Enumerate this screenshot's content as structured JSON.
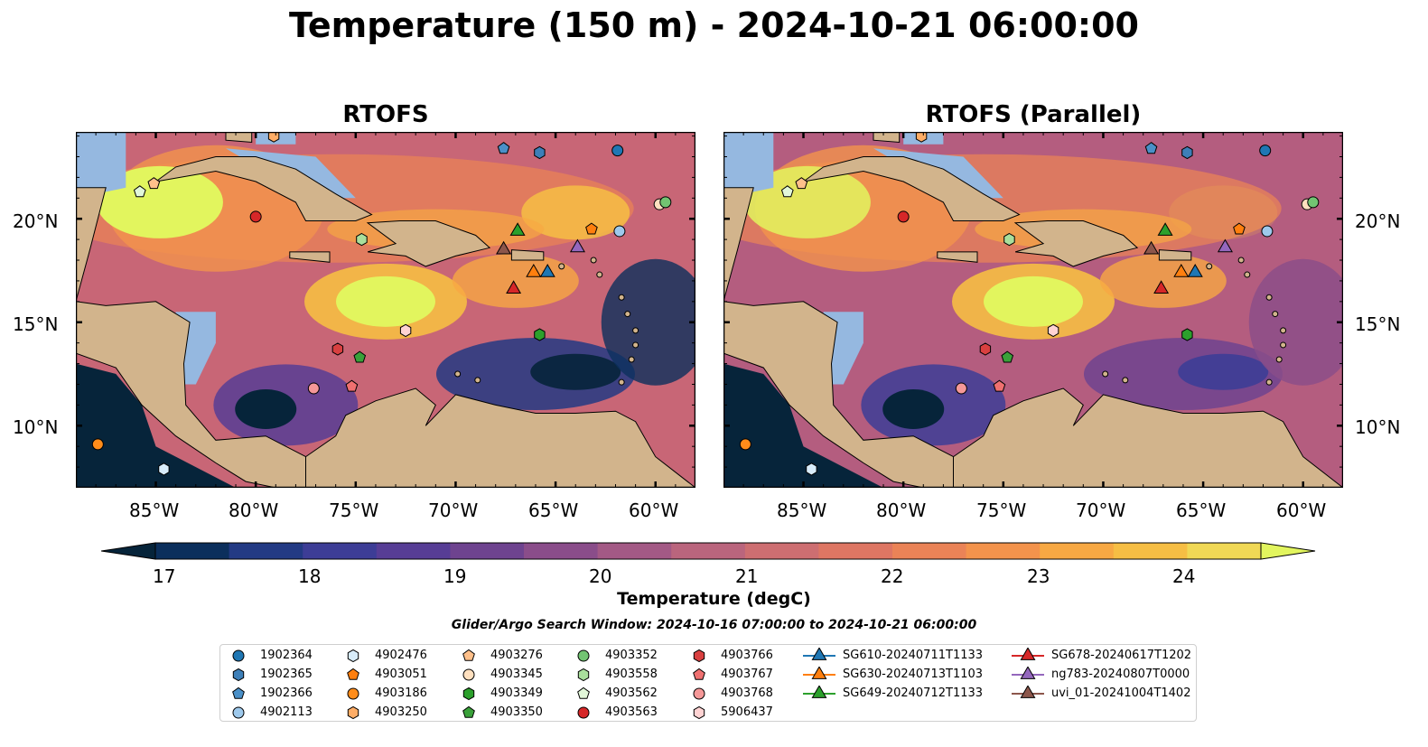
{
  "title": "Temperature (150 m) - 2024-10-21 06:00:00",
  "panels": [
    {
      "title": "RTOFS"
    },
    {
      "title": "RTOFS (Parallel)"
    }
  ],
  "colorbar": {
    "label": "Temperature (degC)",
    "ticks": [
      "17",
      "18",
      "19",
      "20",
      "21",
      "22",
      "23",
      "24"
    ],
    "colors": [
      "#06243a",
      "#0b2f5c",
      "#233a84",
      "#3d3d96",
      "#573d95",
      "#6e438f",
      "#8a4d8a",
      "#a35985",
      "#ba657d",
      "#cd6e71",
      "#de7663",
      "#ea8357",
      "#f3934c",
      "#f7a843",
      "#f6be44",
      "#f0d855",
      "#e2f55e"
    ]
  },
  "search_window": "Glider/Argo Search Window: 2024-10-16 07:00:00 to 2024-10-21 06:00:00",
  "chart_data": [
    {
      "type": "heatmap",
      "title": "RTOFS",
      "variable": "Temperature (150 m)",
      "units": "degC",
      "color_range": [
        17,
        24.5
      ],
      "x_ticks": [
        "85°W",
        "80°W",
        "75°W",
        "70°W",
        "65°W",
        "60°W"
      ],
      "y_ticks": [
        "20°N",
        "15°N",
        "10°N"
      ],
      "xlim": [
        -89,
        -58
      ],
      "ylim": [
        7,
        24.2
      ]
    },
    {
      "type": "heatmap",
      "title": "RTOFS (Parallel)",
      "variable": "Temperature (150 m)",
      "units": "degC",
      "color_range": [
        17,
        24.5
      ],
      "x_ticks": [
        "85°W",
        "80°W",
        "75°W",
        "70°W",
        "65°W",
        "60°W"
      ],
      "y_ticks": [
        "20°N",
        "15°N",
        "10°N"
      ],
      "xlim": [
        -89,
        -58
      ],
      "ylim": [
        7,
        24.2
      ]
    }
  ],
  "legend": [
    {
      "label": "1902364",
      "marker": "circle",
      "color": "#1f77b4"
    },
    {
      "label": "1902365",
      "marker": "hexagon",
      "color": "#3d7fb8"
    },
    {
      "label": "1902366",
      "marker": "pentagon",
      "color": "#4a90c8"
    },
    {
      "label": "4902113",
      "marker": "circle",
      "color": "#9ec9ec"
    },
    {
      "label": "4902476",
      "marker": "hexagon",
      "color": "#d8ecfa"
    },
    {
      "label": "4903051",
      "marker": "pentagon",
      "color": "#ff7f0e"
    },
    {
      "label": "4903186",
      "marker": "circle",
      "color": "#ff8c1a"
    },
    {
      "label": "4903250",
      "marker": "hexagon",
      "color": "#ffad66"
    },
    {
      "label": "4903276",
      "marker": "pentagon",
      "color": "#ffc08a"
    },
    {
      "label": "4903345",
      "marker": "circle",
      "color": "#ffe0bf"
    },
    {
      "label": "4903349",
      "marker": "hexagon",
      "color": "#2ca02c"
    },
    {
      "label": "4903350",
      "marker": "pentagon",
      "color": "#3aa13a"
    },
    {
      "label": "4903352",
      "marker": "circle",
      "color": "#72c472"
    },
    {
      "label": "4903558",
      "marker": "hexagon",
      "color": "#a9df9c"
    },
    {
      "label": "4903562",
      "marker": "pentagon",
      "color": "#e2f7d9"
    },
    {
      "label": "4903563",
      "marker": "circle",
      "color": "#d62728"
    },
    {
      "label": "4903766",
      "marker": "hexagon",
      "color": "#d94040"
    },
    {
      "label": "4903767",
      "marker": "pentagon",
      "color": "#ef7070"
    },
    {
      "label": "4903768",
      "marker": "circle",
      "color": "#f59898"
    },
    {
      "label": "5906437",
      "marker": "hexagon",
      "color": "#ffd3d3"
    },
    {
      "label": "SG610-20240711T1133",
      "marker": "triangle-line",
      "color": "#1f77b4"
    },
    {
      "label": "SG630-20240713T1103",
      "marker": "triangle-line",
      "color": "#ff7f0e"
    },
    {
      "label": "SG649-20240712T1133",
      "marker": "triangle-line",
      "color": "#2ca02c"
    },
    {
      "label": "SG678-20240617T1202",
      "marker": "triangle-line",
      "color": "#d62728"
    },
    {
      "label": "ng783-20240807T0000",
      "marker": "triangle-line",
      "color": "#9467bd"
    },
    {
      "label": "uvi_01-20241004T1402",
      "marker": "triangle-line",
      "color": "#8c564b"
    }
  ],
  "platform_positions": [
    {
      "id": "1902364",
      "lon": -61.9,
      "lat": 23.3
    },
    {
      "id": "1902365",
      "lon": -65.8,
      "lat": 23.2
    },
    {
      "id": "1902366",
      "lon": -67.6,
      "lat": 23.4
    },
    {
      "id": "4902113",
      "lon": -61.8,
      "lat": 19.4
    },
    {
      "id": "4902476",
      "lon": -84.6,
      "lat": 7.9
    },
    {
      "id": "4903051",
      "lon": -63.2,
      "lat": 19.5
    },
    {
      "id": "4903186",
      "lon": -87.9,
      "lat": 9.1
    },
    {
      "id": "4903250",
      "lon": -79.1,
      "lat": 24.0
    },
    {
      "id": "4903276",
      "lon": -85.1,
      "lat": 21.7
    },
    {
      "id": "4903345",
      "lon": -59.8,
      "lat": 20.7
    },
    {
      "id": "4903349",
      "lon": -65.8,
      "lat": 14.4
    },
    {
      "id": "4903350",
      "lon": -74.8,
      "lat": 13.3
    },
    {
      "id": "4903352",
      "lon": -59.5,
      "lat": 20.8
    },
    {
      "id": "4903558",
      "lon": -74.7,
      "lat": 19.0
    },
    {
      "id": "4903562",
      "lon": -85.8,
      "lat": 21.3
    },
    {
      "id": "4903563",
      "lon": -80.0,
      "lat": 20.1
    },
    {
      "id": "4903766",
      "lon": -75.9,
      "lat": 13.7
    },
    {
      "id": "4903767",
      "lon": -75.2,
      "lat": 11.9
    },
    {
      "id": "4903768",
      "lon": -77.1,
      "lat": 11.8
    },
    {
      "id": "5906437",
      "lon": -72.5,
      "lat": 14.6
    },
    {
      "id": "SG610-20240711T1133",
      "lon": -65.4,
      "lat": 17.4
    },
    {
      "id": "SG630-20240713T1103",
      "lon": -66.1,
      "lat": 17.4
    },
    {
      "id": "SG649-20240712T1133",
      "lon": -66.9,
      "lat": 19.4
    },
    {
      "id": "SG678-20240617T1202",
      "lon": -67.1,
      "lat": 16.6
    },
    {
      "id": "ng783-20240807T0000",
      "lon": -63.9,
      "lat": 18.6
    },
    {
      "id": "uvi_01-20241004T1402",
      "lon": -67.6,
      "lat": 18.5
    }
  ]
}
